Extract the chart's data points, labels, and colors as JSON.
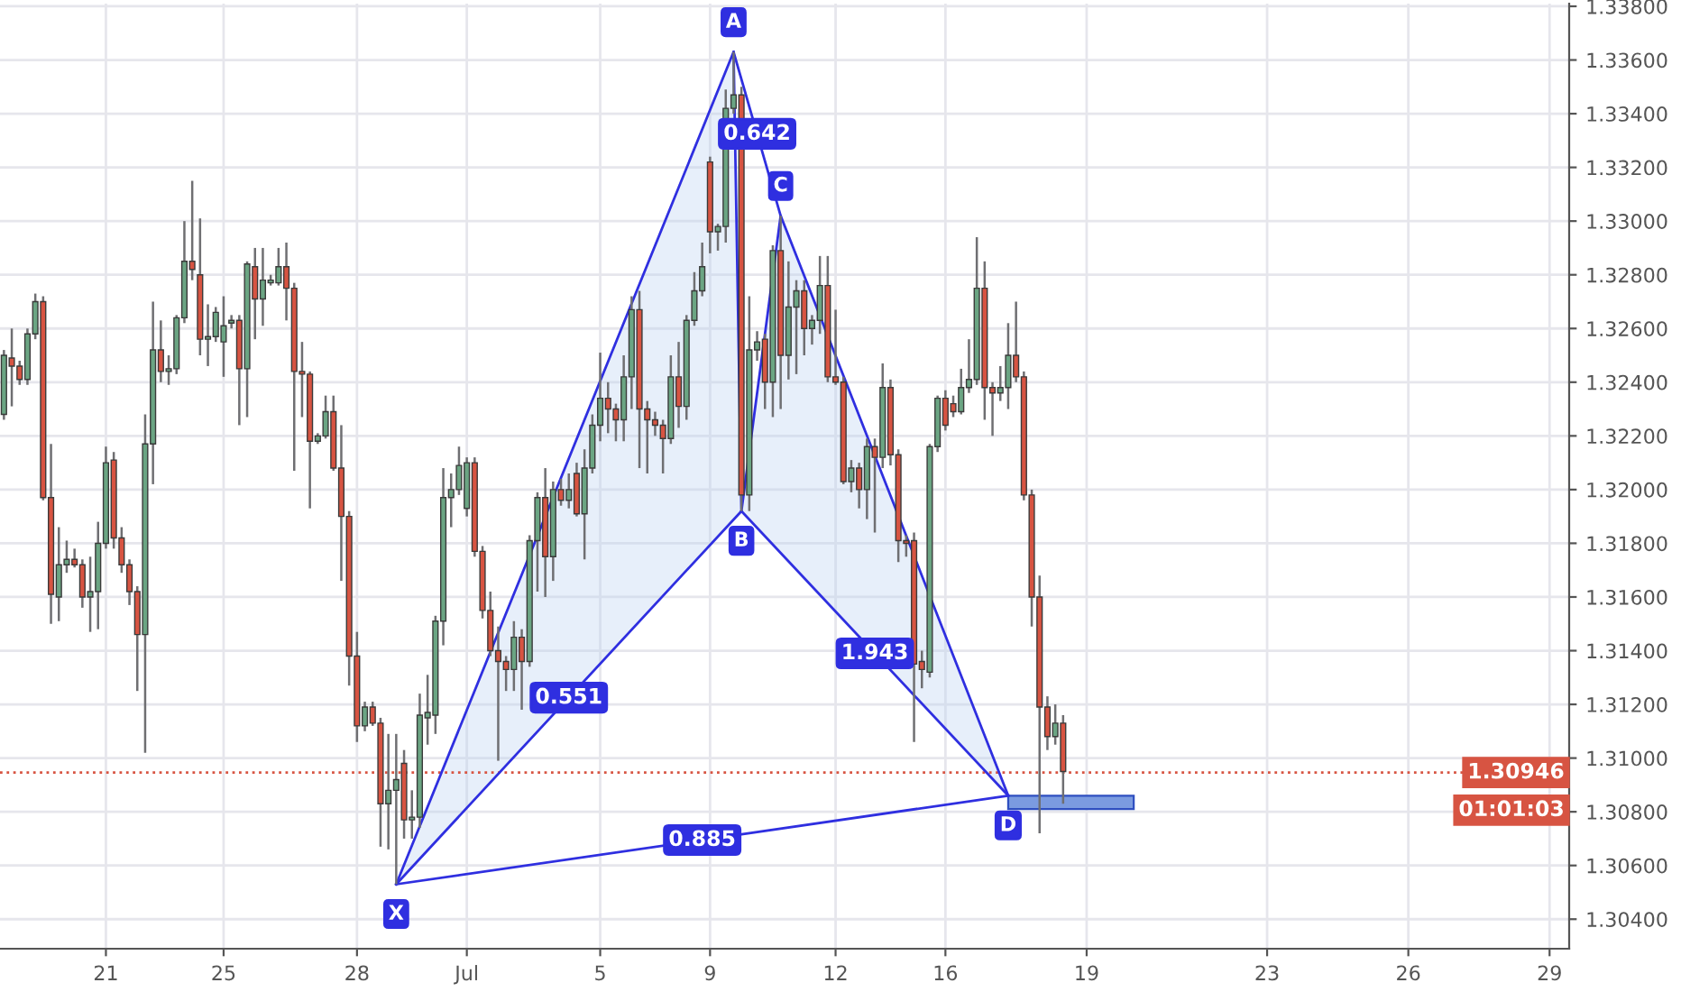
{
  "chart_data": {
    "type": "candlestick",
    "categories": [
      null,
      null,
      null,
      null,
      null,
      null,
      null,
      null,
      null,
      null,
      null,
      null,
      null,
      "21",
      null,
      null,
      null,
      null,
      null,
      null,
      null,
      null,
      null,
      null,
      null,
      null,
      null,
      null,
      "25",
      null,
      null,
      null,
      null,
      null,
      null,
      null,
      null,
      null,
      null,
      null,
      null,
      null,
      null,
      null,
      null,
      "28",
      null,
      null,
      null,
      null,
      null,
      null,
      null,
      null,
      null,
      null,
      null,
      null,
      null,
      "Jul",
      null,
      null,
      null,
      null,
      null,
      null,
      null,
      null,
      null,
      null,
      null,
      null,
      null,
      null,
      null,
      null,
      "5",
      null,
      null,
      null,
      null,
      null,
      null,
      null,
      null,
      null,
      null,
      null,
      null,
      null,
      "9",
      null,
      null,
      null,
      null,
      null,
      null,
      null,
      null,
      null,
      null,
      null,
      null,
      null,
      null,
      null,
      "12",
      null,
      null,
      null,
      null,
      null,
      null,
      null,
      null,
      null,
      null,
      null,
      null,
      null,
      "16",
      null,
      null,
      null,
      null,
      null,
      null,
      null,
      null,
      null,
      null,
      null,
      null,
      null,
      null,
      null,
      null,
      null,
      "19",
      null,
      null,
      null,
      null,
      null,
      null,
      null,
      null,
      null,
      null,
      null,
      null,
      null,
      null,
      null,
      null,
      null,
      null,
      null,
      null,
      null,
      null,
      "23",
      null,
      null,
      null,
      null,
      null,
      null,
      null,
      null,
      null,
      null,
      null,
      null,
      null,
      null,
      null,
      null,
      null,
      "26",
      null,
      null,
      null,
      null,
      null,
      null,
      null,
      null,
      null,
      null,
      null,
      null,
      null,
      null,
      null,
      null,
      null,
      "29",
      null,
      null
    ],
    "ohlc": [
      [
        1.3228,
        1.3252,
        1.3226,
        1.325
      ],
      [
        1.3249,
        1.326,
        1.3231,
        1.3246
      ],
      [
        1.3246,
        1.3248,
        1.3239,
        1.3241
      ],
      [
        1.3241,
        1.326,
        1.3239,
        1.3258
      ],
      [
        1.3258,
        1.3273,
        1.3256,
        1.327
      ],
      [
        1.327,
        1.3272,
        1.3196,
        1.3197
      ],
      [
        1.3197,
        1.3217,
        1.315,
        1.3161
      ],
      [
        1.316,
        1.3186,
        1.3151,
        1.3172
      ],
      [
        1.3172,
        1.3181,
        1.3169,
        1.3174
      ],
      [
        1.3174,
        1.3178,
        1.3171,
        1.3172
      ],
      [
        1.3172,
        1.3174,
        1.3156,
        1.316
      ],
      [
        1.316,
        1.3175,
        1.3147,
        1.3162
      ],
      [
        1.3162,
        1.3188,
        1.3148,
        1.318
      ],
      [
        1.318,
        1.3216,
        1.3178,
        1.321
      ],
      [
        1.3211,
        1.3214,
        1.3178,
        1.3182
      ],
      [
        1.3182,
        1.3186,
        1.3169,
        1.3172
      ],
      [
        1.3172,
        1.3174,
        1.3157,
        1.3162
      ],
      [
        1.3162,
        1.3164,
        1.3125,
        1.3146
      ],
      [
        1.3146,
        1.3228,
        1.3102,
        1.3217
      ],
      [
        1.3217,
        1.327,
        1.3202,
        1.3252
      ],
      [
        1.3252,
        1.3263,
        1.324,
        1.3244
      ],
      [
        1.3244,
        1.325,
        1.3239,
        1.3245
      ],
      [
        1.3245,
        1.3265,
        1.3243,
        1.3264
      ],
      [
        1.3264,
        1.33,
        1.3262,
        1.3285
      ],
      [
        1.3285,
        1.3315,
        1.3278,
        1.3282
      ],
      [
        1.328,
        1.3301,
        1.325,
        1.3256
      ],
      [
        1.3256,
        1.3269,
        1.3246,
        1.3257
      ],
      [
        1.3257,
        1.3268,
        1.3255,
        1.3266
      ],
      [
        1.3255,
        1.3272,
        1.3242,
        1.3261
      ],
      [
        1.3262,
        1.3265,
        1.326,
        1.3263
      ],
      [
        1.3263,
        1.3265,
        1.3224,
        1.3245
      ],
      [
        1.3245,
        1.3285,
        1.3227,
        1.3284
      ],
      [
        1.3283,
        1.329,
        1.3256,
        1.3271
      ],
      [
        1.3271,
        1.329,
        1.3261,
        1.3278
      ],
      [
        1.3277,
        1.328,
        1.3276,
        1.3278
      ],
      [
        1.3277,
        1.329,
        1.3276,
        1.3283
      ],
      [
        1.3283,
        1.3292,
        1.3263,
        1.3275
      ],
      [
        1.3275,
        1.3277,
        1.3207,
        1.3244
      ],
      [
        1.3244,
        1.3255,
        1.3227,
        1.3243
      ],
      [
        1.3243,
        1.3244,
        1.3193,
        1.3218
      ],
      [
        1.3218,
        1.3221,
        1.3217,
        1.322
      ],
      [
        1.322,
        1.3235,
        1.3219,
        1.3229
      ],
      [
        1.3229,
        1.3235,
        1.3207,
        1.3208
      ],
      [
        1.3208,
        1.3224,
        1.3166,
        1.319
      ],
      [
        1.319,
        1.3192,
        1.3127,
        1.3138
      ],
      [
        1.3138,
        1.3147,
        1.3106,
        1.3112
      ],
      [
        1.3112,
        1.3121,
        1.311,
        1.3119
      ],
      [
        1.3119,
        1.3121,
        1.3112,
        1.3113
      ],
      [
        1.3113,
        1.3115,
        1.3067,
        1.3083
      ],
      [
        1.3083,
        1.3109,
        1.3066,
        1.3088
      ],
      [
        1.3088,
        1.3109,
        1.3053,
        1.3092
      ],
      [
        1.3098,
        1.3103,
        1.307,
        1.3077
      ],
      [
        1.3077,
        1.3088,
        1.307,
        1.3078
      ],
      [
        1.3078,
        1.3124,
        1.3074,
        1.3116
      ],
      [
        1.3115,
        1.3131,
        1.3105,
        1.3117
      ],
      [
        1.3116,
        1.3153,
        1.3109,
        1.3151
      ],
      [
        1.3151,
        1.3208,
        1.3142,
        1.3197
      ],
      [
        1.3197,
        1.3206,
        1.3186,
        1.32
      ],
      [
        1.32,
        1.3216,
        1.3198,
        1.3209
      ],
      [
        1.3193,
        1.3212,
        1.319,
        1.321
      ],
      [
        1.321,
        1.3212,
        1.3175,
        1.3177
      ],
      [
        1.3177,
        1.3179,
        1.3152,
        1.3155
      ],
      [
        1.3155,
        1.3162,
        1.3138,
        1.314
      ],
      [
        1.314,
        1.3149,
        1.3099,
        1.3136
      ],
      [
        1.3136,
        1.3138,
        1.3125,
        1.3133
      ],
      [
        1.3133,
        1.3151,
        1.3125,
        1.3145
      ],
      [
        1.3145,
        1.3148,
        1.3118,
        1.3136
      ],
      [
        1.3136,
        1.3183,
        1.3134,
        1.3181
      ],
      [
        1.3181,
        1.3199,
        1.3162,
        1.3197
      ],
      [
        1.3197,
        1.3208,
        1.316,
        1.3175
      ],
      [
        1.3175,
        1.3203,
        1.3166,
        1.32
      ],
      [
        1.32,
        1.3204,
        1.3194,
        1.3196
      ],
      [
        1.3196,
        1.3206,
        1.3193,
        1.32
      ],
      [
        1.3206,
        1.321,
        1.319,
        1.3191
      ],
      [
        1.3191,
        1.3215,
        1.3174,
        1.3208
      ],
      [
        1.3208,
        1.3228,
        1.3206,
        1.3224
      ],
      [
        1.3224,
        1.3251,
        1.3218,
        1.3234
      ],
      [
        1.3234,
        1.324,
        1.3221,
        1.323
      ],
      [
        1.323,
        1.3232,
        1.3218,
        1.3226
      ],
      [
        1.3226,
        1.325,
        1.3218,
        1.3242
      ],
      [
        1.3242,
        1.3272,
        1.323,
        1.3267
      ],
      [
        1.3267,
        1.3274,
        1.3208,
        1.323
      ],
      [
        1.323,
        1.3233,
        1.3206,
        1.3226
      ],
      [
        1.3226,
        1.3229,
        1.322,
        1.3224
      ],
      [
        1.3224,
        1.3226,
        1.3206,
        1.3219
      ],
      [
        1.3219,
        1.325,
        1.3217,
        1.3242
      ],
      [
        1.3242,
        1.3255,
        1.3223,
        1.3231
      ],
      [
        1.3231,
        1.3265,
        1.3226,
        1.3263
      ],
      [
        1.3263,
        1.3281,
        1.3261,
        1.3274
      ],
      [
        1.3274,
        1.3292,
        1.3272,
        1.3283
      ],
      [
        1.3322,
        1.3324,
        1.3288,
        1.3296
      ],
      [
        1.3296,
        1.3299,
        1.3289,
        1.3298
      ],
      [
        1.3298,
        1.3349,
        1.3292,
        1.3342
      ],
      [
        1.3342,
        1.3363,
        1.334,
        1.3347
      ],
      [
        1.3347,
        1.335,
        1.3192,
        1.3198
      ],
      [
        1.3198,
        1.3272,
        1.3192,
        1.3252
      ],
      [
        1.3252,
        1.3259,
        1.3248,
        1.3255
      ],
      [
        1.3256,
        1.3258,
        1.323,
        1.324
      ],
      [
        1.324,
        1.3291,
        1.3227,
        1.3289
      ],
      [
        1.3289,
        1.3302,
        1.323,
        1.325
      ],
      [
        1.325,
        1.3285,
        1.3241,
        1.3268
      ],
      [
        1.3268,
        1.3278,
        1.3243,
        1.3274
      ],
      [
        1.3274,
        1.3278,
        1.325,
        1.326
      ],
      [
        1.326,
        1.3265,
        1.3254,
        1.3263
      ],
      [
        1.3263,
        1.3287,
        1.3258,
        1.3276
      ],
      [
        1.3276,
        1.3287,
        1.324,
        1.3242
      ],
      [
        1.3242,
        1.3267,
        1.3239,
        1.324
      ],
      [
        1.324,
        1.3242,
        1.3202,
        1.3203
      ],
      [
        1.3203,
        1.3211,
        1.3199,
        1.3208
      ],
      [
        1.3208,
        1.321,
        1.3193,
        1.32
      ],
      [
        1.32,
        1.3219,
        1.3189,
        1.3216
      ],
      [
        1.3216,
        1.3219,
        1.3184,
        1.3212
      ],
      [
        1.3212,
        1.3247,
        1.3208,
        1.3238
      ],
      [
        1.3238,
        1.3241,
        1.3209,
        1.3213
      ],
      [
        1.3213,
        1.3215,
        1.3173,
        1.3181
      ],
      [
        1.3181,
        1.3183,
        1.3175,
        1.318
      ],
      [
        1.3181,
        1.3184,
        1.3106,
        1.3135
      ],
      [
        1.3136,
        1.314,
        1.3126,
        1.3133
      ],
      [
        1.3132,
        1.3217,
        1.313,
        1.3216
      ],
      [
        1.3216,
        1.3235,
        1.3214,
        1.3234
      ],
      [
        1.3234,
        1.3237,
        1.3222,
        1.3224
      ],
      [
        1.3232,
        1.3235,
        1.3227,
        1.3229
      ],
      [
        1.3229,
        1.3245,
        1.3228,
        1.3238
      ],
      [
        1.3238,
        1.3256,
        1.3236,
        1.3241
      ],
      [
        1.3241,
        1.3294,
        1.3239,
        1.3275
      ],
      [
        1.3275,
        1.3285,
        1.3226,
        1.3238
      ],
      [
        1.3238,
        1.324,
        1.322,
        1.3236
      ],
      [
        1.3236,
        1.3246,
        1.3233,
        1.3238
      ],
      [
        1.3238,
        1.3262,
        1.323,
        1.325
      ],
      [
        1.325,
        1.327,
        1.324,
        1.3242
      ],
      [
        1.3242,
        1.3244,
        1.3196,
        1.3198
      ],
      [
        1.3198,
        1.32,
        1.3149,
        1.316
      ],
      [
        1.316,
        1.3168,
        1.3072,
        1.3119
      ],
      [
        1.3119,
        1.3123,
        1.3103,
        1.3108
      ],
      [
        1.3108,
        1.312,
        1.3105,
        1.3113
      ],
      [
        1.3113,
        1.3116,
        1.3083,
        1.3095
      ],
      null,
      null,
      null,
      null,
      null,
      null,
      null,
      null,
      null,
      null,
      null,
      null,
      null,
      null,
      null,
      null,
      null,
      null,
      null,
      null,
      null,
      null,
      null,
      null,
      null,
      null,
      null,
      null,
      null,
      null,
      null,
      null,
      null,
      null,
      null,
      null,
      null,
      null,
      null,
      null,
      null,
      null,
      null,
      null,
      null,
      null,
      null,
      null,
      null,
      null,
      null,
      null,
      null,
      null,
      null,
      null,
      null,
      null,
      null,
      null,
      null,
      null,
      null,
      null
    ],
    "series": [
      {
        "type": "line",
        "color": "#2f2fe0",
        "values": [
          null,
          null,
          null,
          null,
          null,
          null,
          null,
          null,
          null,
          null,
          null,
          null,
          null,
          null,
          null,
          null,
          null,
          null,
          null,
          null,
          null,
          null,
          null,
          null,
          null,
          null,
          null,
          null,
          null,
          null,
          null,
          null,
          null,
          null,
          null,
          null,
          null,
          null,
          null,
          null,
          null,
          null,
          null,
          null,
          null,
          null,
          null,
          null,
          null,
          null,
          1.3053,
          null,
          null,
          null,
          null,
          null,
          null,
          null,
          null,
          null,
          null,
          null,
          null,
          null,
          null,
          null,
          null,
          null,
          null,
          null,
          null,
          null,
          null,
          null,
          null,
          null,
          null,
          null,
          null,
          null,
          null,
          null,
          null,
          null,
          null,
          null,
          null,
          null,
          null,
          null,
          null,
          null,
          null,
          1.3363,
          1.3192,
          null,
          null,
          null,
          null,
          1.3302,
          null,
          null,
          null,
          null,
          null,
          null,
          null,
          null,
          null,
          null,
          null,
          null,
          null,
          null,
          null,
          null,
          null,
          null,
          null,
          null,
          null,
          null,
          null,
          null,
          null,
          null,
          null,
          null,
          1.3086,
          null,
          null,
          null,
          null,
          null,
          null,
          null,
          null,
          null,
          null,
          null,
          null,
          null,
          null,
          null,
          null,
          null,
          null,
          null,
          null,
          null,
          null,
          null,
          null,
          null,
          null,
          null,
          null,
          null,
          null,
          null,
          null,
          null,
          null,
          null,
          null,
          null,
          null,
          null,
          null,
          null,
          null,
          null,
          null,
          null,
          null,
          null,
          null,
          null,
          null,
          null,
          null,
          null,
          null,
          null,
          null,
          null,
          null,
          null,
          null,
          null,
          null,
          null,
          null,
          null,
          null,
          null,
          null,
          null,
          null,
          null
        ],
        "value_labels": [
          null,
          null,
          null,
          null,
          null,
          null,
          null,
          null,
          null,
          null,
          null,
          null,
          null,
          null,
          null,
          null,
          null,
          null,
          null,
          null,
          null,
          null,
          null,
          null,
          null,
          null,
          null,
          null,
          null,
          null,
          null,
          null,
          null,
          null,
          null,
          null,
          null,
          null,
          null,
          null,
          null,
          null,
          null,
          null,
          null,
          null,
          null,
          null,
          null,
          null,
          "X",
          null,
          null,
          null,
          null,
          null,
          null,
          null,
          null,
          null,
          null,
          null,
          null,
          null,
          null,
          null,
          null,
          null,
          null,
          null,
          null,
          null,
          null,
          null,
          null,
          null,
          null,
          null,
          null,
          null,
          null,
          null,
          null,
          null,
          null,
          null,
          null,
          null,
          null,
          null,
          null,
          null,
          null,
          "A",
          "B",
          null,
          null,
          null,
          null,
          "C",
          null,
          null,
          null,
          null,
          null,
          null,
          null,
          null,
          null,
          null,
          null,
          null,
          null,
          null,
          null,
          null,
          null,
          null,
          null,
          null,
          null,
          null,
          null,
          null,
          null,
          null,
          null,
          null,
          "D",
          null,
          null,
          null,
          null,
          null,
          null,
          null,
          null,
          null,
          null,
          null,
          null,
          null,
          null,
          null,
          null,
          null,
          null,
          null,
          null,
          null,
          null,
          null,
          null,
          null,
          null,
          null,
          null,
          null,
          null,
          null,
          null,
          null,
          null,
          null,
          null,
          null,
          null,
          null,
          null,
          null,
          null,
          null,
          null,
          null,
          null,
          null,
          null,
          null,
          null,
          null,
          null,
          null,
          null,
          null,
          null,
          null,
          null,
          null,
          null,
          null,
          null,
          null,
          null,
          null,
          null,
          null,
          null,
          null,
          null,
          null
        ]
      }
    ],
    "annotations": [
      "0.551",
      "0.642",
      "1.943",
      "0.885",
      "01:01:03"
    ],
    "ref_lines": [
      {
        "axis": "y",
        "value": 1.30946,
        "label": "1.30946",
        "color": "#d75442",
        "line_style": "dotted"
      }
    ],
    "bands": [
      {
        "axis": "y",
        "from": 1.3081,
        "to": 1.3086,
        "color": "#7b9be0"
      }
    ],
    "ylim": [
      1.3029,
      1.3381
    ],
    "yticks": [
      {
        "value": 1.304,
        "label": "1.30400"
      },
      {
        "value": 1.306,
        "label": "1.30600"
      },
      {
        "value": 1.308,
        "label": "1.30800"
      },
      {
        "value": 1.31,
        "label": "1.31000"
      },
      {
        "value": 1.312,
        "label": "1.31200"
      },
      {
        "value": 1.314,
        "label": "1.31400"
      },
      {
        "value": 1.316,
        "label": "1.31600"
      },
      {
        "value": 1.318,
        "label": "1.31800"
      },
      {
        "value": 1.32,
        "label": "1.32000"
      },
      {
        "value": 1.322,
        "label": "1.32200"
      },
      {
        "value": 1.324,
        "label": "1.32400"
      },
      {
        "value": 1.326,
        "label": "1.32600"
      },
      {
        "value": 1.328,
        "label": "1.32800"
      },
      {
        "value": 1.33,
        "label": "1.33000"
      },
      {
        "value": 1.332,
        "label": "1.33200"
      },
      {
        "value": 1.334,
        "label": "1.33400"
      },
      {
        "value": 1.336,
        "label": "1.33600"
      },
      {
        "value": 1.338,
        "label": "1.33800"
      }
    ],
    "grid": true
  }
}
